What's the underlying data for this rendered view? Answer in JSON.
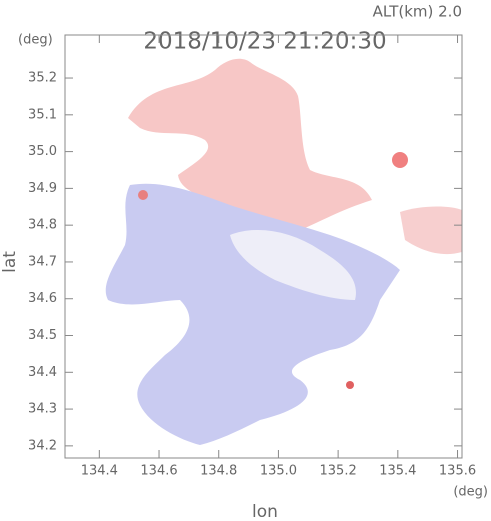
{
  "chart_data": {
    "type": "map",
    "title": "2018/10/23 21:20:30",
    "altitude_label": "ALT(km)  2.0",
    "x_label": "lon",
    "y_label": "lat",
    "x_unit": "(deg)",
    "y_unit": "(deg)",
    "xlim": [
      134.285,
      135.615
    ],
    "ylim": [
      34.167,
      35.317
    ],
    "xticks": [
      134.4,
      134.6,
      134.8,
      {
        "value": 135,
        "label": "135.0"
      },
      135.2,
      135.4,
      135.6
    ],
    "yticks": [
      34.2,
      34.3,
      34.4,
      34.5,
      34.6,
      34.7,
      34.8,
      34.9,
      {
        "value": 35,
        "label": "35.0"
      },
      35.1,
      35.2
    ]
  }
}
